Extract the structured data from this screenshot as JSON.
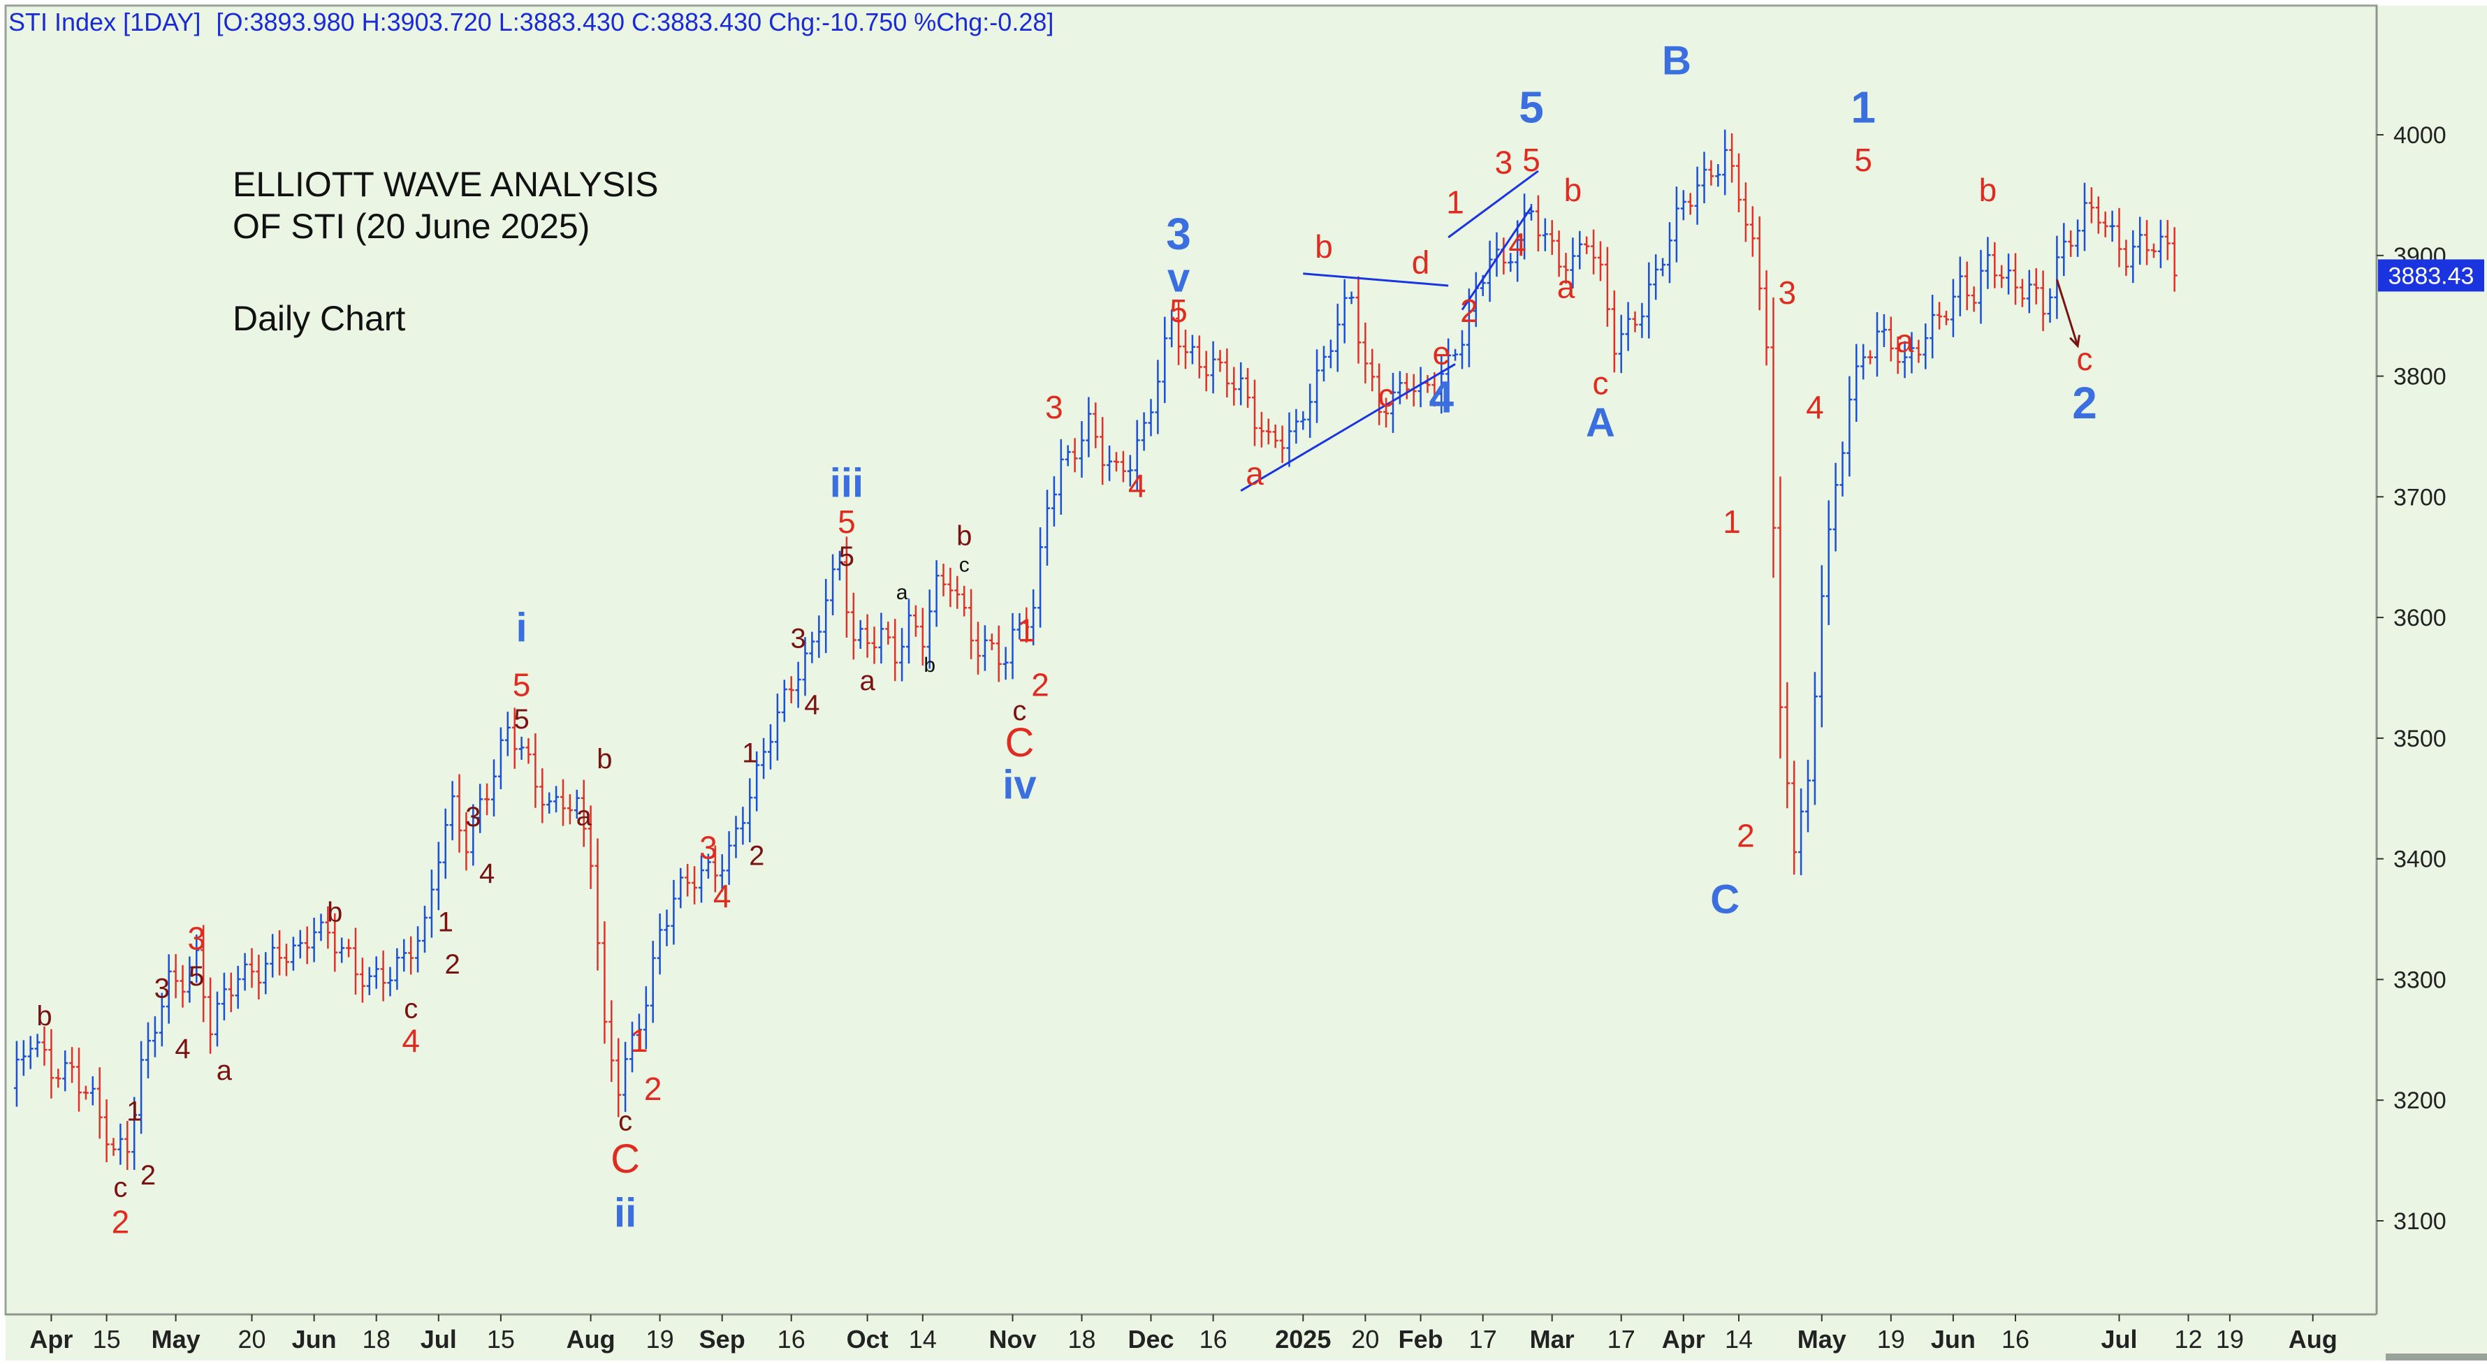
{
  "header": {
    "symbol": "STI Index [1DAY]",
    "ohlc": "[O:3893.980 H:3903.720 L:3883.430 C:3883.430 Chg:-10.750 %Chg:-0.28]"
  },
  "notes": {
    "title_line1": "ELLIOTT WAVE ANALYSIS",
    "title_line2": "OF STI (20 June 2025)",
    "subtitle": "Daily Chart"
  },
  "price_tag": {
    "value": "3883.43",
    "price": 3883.43
  },
  "colors": {
    "background": "#eaf5e4",
    "bar_blue": "#1a4fd6",
    "bar_red": "#e0302a",
    "wave_blue": "#3b6fe0",
    "wave_red": "#e02b20",
    "wave_dark": "#7a1212",
    "header_text": "#1a2ad6"
  },
  "chart_data": {
    "type": "ohlc",
    "title": "STI Index [1DAY]",
    "ylim": [
      3030,
      4100
    ],
    "yticks": [
      "3100",
      "3200",
      "3300",
      "3400",
      "3500",
      "3600",
      "3700",
      "3800",
      "3900",
      "4000"
    ],
    "xticks": [
      {
        "label": "Apr",
        "idx": 6,
        "bold": true
      },
      {
        "label": "15",
        "idx": 14,
        "bold": false
      },
      {
        "label": "May",
        "idx": 24,
        "bold": true
      },
      {
        "label": "20",
        "idx": 35,
        "bold": false
      },
      {
        "label": "Jun",
        "idx": 44,
        "bold": true
      },
      {
        "label": "18",
        "idx": 53,
        "bold": false
      },
      {
        "label": "Jul",
        "idx": 62,
        "bold": true
      },
      {
        "label": "15",
        "idx": 71,
        "bold": false
      },
      {
        "label": "Aug",
        "idx": 84,
        "bold": true
      },
      {
        "label": "19",
        "idx": 94,
        "bold": false
      },
      {
        "label": "Sep",
        "idx": 103,
        "bold": true
      },
      {
        "label": "16",
        "idx": 113,
        "bold": false
      },
      {
        "label": "Oct",
        "idx": 124,
        "bold": true
      },
      {
        "label": "14",
        "idx": 132,
        "bold": false
      },
      {
        "label": "Nov",
        "idx": 145,
        "bold": true
      },
      {
        "label": "18",
        "idx": 155,
        "bold": false
      },
      {
        "label": "Dec",
        "idx": 165,
        "bold": true
      },
      {
        "label": "16",
        "idx": 174,
        "bold": false
      },
      {
        "label": "2025",
        "idx": 187,
        "bold": true
      },
      {
        "label": "20",
        "idx": 196,
        "bold": false
      },
      {
        "label": "Feb",
        "idx": 204,
        "bold": true
      },
      {
        "label": "17",
        "idx": 213,
        "bold": false
      },
      {
        "label": "Mar",
        "idx": 223,
        "bold": true
      },
      {
        "label": "17",
        "idx": 233,
        "bold": false
      },
      {
        "label": "Apr",
        "idx": 242,
        "bold": true
      },
      {
        "label": "14",
        "idx": 250,
        "bold": false
      },
      {
        "label": "May",
        "idx": 262,
        "bold": true
      },
      {
        "label": "19",
        "idx": 272,
        "bold": false
      },
      {
        "label": "Jun",
        "idx": 281,
        "bold": true
      },
      {
        "label": "16",
        "idx": 290,
        "bold": false
      },
      {
        "label": "Jul",
        "idx": 305,
        "bold": true
      },
      {
        "label": "12",
        "idx": 315,
        "bold": false
      },
      {
        "label": "19",
        "idx": 321,
        "bold": false
      },
      {
        "label": "Aug",
        "idx": 333,
        "bold": true
      }
    ],
    "xlim": [
      0,
      340
    ],
    "anchors": [
      [
        0,
        3210
      ],
      [
        3,
        3245
      ],
      [
        6,
        3225
      ],
      [
        9,
        3230
      ],
      [
        12,
        3200
      ],
      [
        15,
        3150
      ],
      [
        17,
        3160
      ],
      [
        19,
        3230
      ],
      [
        21,
        3270
      ],
      [
        23,
        3300
      ],
      [
        25,
        3295
      ],
      [
        27,
        3310
      ],
      [
        29,
        3260
      ],
      [
        31,
        3290
      ],
      [
        33,
        3310
      ],
      [
        36,
        3305
      ],
      [
        39,
        3315
      ],
      [
        42,
        3325
      ],
      [
        44,
        3350
      ],
      [
        46,
        3340
      ],
      [
        48,
        3325
      ],
      [
        50,
        3300
      ],
      [
        52,
        3295
      ],
      [
        55,
        3310
      ],
      [
        58,
        3330
      ],
      [
        60,
        3340
      ],
      [
        62,
        3400
      ],
      [
        64,
        3440
      ],
      [
        66,
        3415
      ],
      [
        68,
        3450
      ],
      [
        70,
        3475
      ],
      [
        72,
        3505
      ],
      [
        74,
        3485
      ],
      [
        76,
        3460
      ],
      [
        78,
        3445
      ],
      [
        80,
        3455
      ],
      [
        82,
        3445
      ],
      [
        84,
        3400
      ],
      [
        86,
        3250
      ],
      [
        88,
        3210
      ],
      [
        90,
        3250
      ],
      [
        92,
        3290
      ],
      [
        94,
        3340
      ],
      [
        96,
        3365
      ],
      [
        98,
        3375
      ],
      [
        100,
        3385
      ],
      [
        102,
        3395
      ],
      [
        104,
        3410
      ],
      [
        106,
        3440
      ],
      [
        108,
        3465
      ],
      [
        110,
        3500
      ],
      [
        112,
        3530
      ],
      [
        114,
        3560
      ],
      [
        116,
        3580
      ],
      [
        118,
        3620
      ],
      [
        120,
        3640
      ],
      [
        122,
        3575
      ],
      [
        124,
        3580
      ],
      [
        126,
        3590
      ],
      [
        128,
        3575
      ],
      [
        130,
        3595
      ],
      [
        132,
        3580
      ],
      [
        134,
        3620
      ],
      [
        136,
        3630
      ],
      [
        138,
        3605
      ],
      [
        140,
        3580
      ],
      [
        142,
        3575
      ],
      [
        144,
        3560
      ],
      [
        146,
        3590
      ],
      [
        148,
        3605
      ],
      [
        150,
        3700
      ],
      [
        152,
        3730
      ],
      [
        154,
        3740
      ],
      [
        156,
        3755
      ],
      [
        158,
        3730
      ],
      [
        160,
        3720
      ],
      [
        162,
        3735
      ],
      [
        164,
        3760
      ],
      [
        166,
        3800
      ],
      [
        168,
        3840
      ],
      [
        170,
        3815
      ],
      [
        172,
        3810
      ],
      [
        174,
        3815
      ],
      [
        176,
        3805
      ],
      [
        178,
        3790
      ],
      [
        180,
        3760
      ],
      [
        182,
        3740
      ],
      [
        184,
        3750
      ],
      [
        186,
        3760
      ],
      [
        188,
        3790
      ],
      [
        190,
        3810
      ],
      [
        192,
        3840
      ],
      [
        194,
        3860
      ],
      [
        196,
        3810
      ],
      [
        198,
        3780
      ],
      [
        200,
        3785
      ],
      [
        202,
        3795
      ],
      [
        204,
        3780
      ],
      [
        206,
        3790
      ],
      [
        208,
        3810
      ],
      [
        210,
        3840
      ],
      [
        212,
        3870
      ],
      [
        214,
        3900
      ],
      [
        216,
        3885
      ],
      [
        218,
        3910
      ],
      [
        220,
        3940
      ],
      [
        222,
        3920
      ],
      [
        224,
        3900
      ],
      [
        226,
        3890
      ],
      [
        228,
        3910
      ],
      [
        230,
        3880
      ],
      [
        232,
        3830
      ],
      [
        234,
        3845
      ],
      [
        236,
        3860
      ],
      [
        238,
        3880
      ],
      [
        240,
        3910
      ],
      [
        242,
        3940
      ],
      [
        244,
        3960
      ],
      [
        246,
        3975
      ],
      [
        248,
        3985
      ],
      [
        250,
        3950
      ],
      [
        252,
        3900
      ],
      [
        254,
        3830
      ],
      [
        256,
        3520
      ],
      [
        258,
        3420
      ],
      [
        260,
        3460
      ],
      [
        262,
        3620
      ],
      [
        264,
        3700
      ],
      [
        266,
        3780
      ],
      [
        268,
        3820
      ],
      [
        270,
        3840
      ],
      [
        272,
        3830
      ],
      [
        274,
        3805
      ],
      [
        276,
        3820
      ],
      [
        278,
        3840
      ],
      [
        280,
        3860
      ],
      [
        282,
        3880
      ],
      [
        284,
        3870
      ],
      [
        286,
        3890
      ],
      [
        288,
        3880
      ],
      [
        290,
        3870
      ],
      [
        292,
        3880
      ],
      [
        294,
        3860
      ],
      [
        296,
        3895
      ],
      [
        298,
        3910
      ],
      [
        300,
        3930
      ],
      [
        302,
        3935
      ],
      [
        304,
        3920
      ],
      [
        306,
        3905
      ],
      [
        308,
        3910
      ],
      [
        310,
        3905
      ],
      [
        312,
        3900
      ],
      [
        313,
        3883.43
      ]
    ]
  },
  "wave_labels": [
    {
      "text": "b",
      "idx": 5,
      "price": 3262,
      "color": "dark",
      "size": 40
    },
    {
      "text": "c",
      "idx": 16,
      "price": 3120,
      "color": "dark",
      "size": 40
    },
    {
      "text": "2",
      "idx": 16,
      "price": 3090,
      "color": "red",
      "size": 46
    },
    {
      "text": "1",
      "idx": 18,
      "price": 3183,
      "color": "dark",
      "size": 40
    },
    {
      "text": "2",
      "idx": 20,
      "price": 3130,
      "color": "dark",
      "size": 40
    },
    {
      "text": "3",
      "idx": 22,
      "price": 3285,
      "color": "dark",
      "size": 40
    },
    {
      "text": "3",
      "idx": 27,
      "price": 3325,
      "color": "red",
      "size": 46
    },
    {
      "text": "5",
      "idx": 27,
      "price": 3295,
      "color": "dark",
      "size": 40
    },
    {
      "text": "4",
      "idx": 25,
      "price": 3235,
      "color": "dark",
      "size": 40
    },
    {
      "text": "a",
      "idx": 31,
      "price": 3217,
      "color": "dark",
      "size": 40
    },
    {
      "text": "b",
      "idx": 47,
      "price": 3348,
      "color": "dark",
      "size": 40
    },
    {
      "text": "c",
      "idx": 58,
      "price": 3268,
      "color": "dark",
      "size": 40
    },
    {
      "text": "4",
      "idx": 58,
      "price": 3240,
      "color": "red",
      "size": 46
    },
    {
      "text": "1",
      "idx": 63,
      "price": 3340,
      "color": "dark",
      "size": 40
    },
    {
      "text": "2",
      "idx": 64,
      "price": 3305,
      "color": "dark",
      "size": 40
    },
    {
      "text": "3",
      "idx": 67,
      "price": 3427,
      "color": "dark",
      "size": 40
    },
    {
      "text": "4",
      "idx": 69,
      "price": 3380,
      "color": "dark",
      "size": 40
    },
    {
      "text": "i",
      "idx": 74,
      "price": 3580,
      "color": "blue",
      "size": 58
    },
    {
      "text": "5",
      "idx": 74,
      "price": 3535,
      "color": "red",
      "size": 46
    },
    {
      "text": "5",
      "idx": 74,
      "price": 3508,
      "color": "dark",
      "size": 40
    },
    {
      "text": "a",
      "idx": 83,
      "price": 3428,
      "color": "dark",
      "size": 40
    },
    {
      "text": "b",
      "idx": 86,
      "price": 3475,
      "color": "dark",
      "size": 40
    },
    {
      "text": "c",
      "idx": 89,
      "price": 3175,
      "color": "dark",
      "size": 40
    },
    {
      "text": "C",
      "idx": 89,
      "price": 3140,
      "color": "red",
      "size": 58
    },
    {
      "text": "ii",
      "idx": 89,
      "price": 3095,
      "color": "blue",
      "size": 58
    },
    {
      "text": "1",
      "idx": 91,
      "price": 3240,
      "color": "red",
      "size": 46
    },
    {
      "text": "2",
      "idx": 93,
      "price": 3200,
      "color": "red",
      "size": 46
    },
    {
      "text": "3",
      "idx": 101,
      "price": 3400,
      "color": "red",
      "size": 46
    },
    {
      "text": "4",
      "idx": 103,
      "price": 3360,
      "color": "red",
      "size": 46
    },
    {
      "text": "1",
      "idx": 107,
      "price": 3480,
      "color": "dark",
      "size": 40
    },
    {
      "text": "2",
      "idx": 108,
      "price": 3395,
      "color": "dark",
      "size": 40
    },
    {
      "text": "3",
      "idx": 114,
      "price": 3575,
      "color": "dark",
      "size": 40
    },
    {
      "text": "4",
      "idx": 116,
      "price": 3520,
      "color": "dark",
      "size": 40
    },
    {
      "text": "iii",
      "idx": 121,
      "price": 3700,
      "color": "blue",
      "size": 58
    },
    {
      "text": "5",
      "idx": 121,
      "price": 3670,
      "color": "red",
      "size": 46
    },
    {
      "text": "5",
      "idx": 121,
      "price": 3643,
      "color": "dark",
      "size": 40
    },
    {
      "text": "a",
      "idx": 124,
      "price": 3540,
      "color": "dark",
      "size": 40
    },
    {
      "text": "a",
      "idx": 129,
      "price": 3615,
      "color": "black",
      "size": 30
    },
    {
      "text": "b",
      "idx": 133,
      "price": 3555,
      "color": "black",
      "size": 30
    },
    {
      "text": "b",
      "idx": 138,
      "price": 3660,
      "color": "dark",
      "size": 40
    },
    {
      "text": "c",
      "idx": 138,
      "price": 3638,
      "color": "black",
      "size": 30
    },
    {
      "text": "1",
      "idx": 147,
      "price": 3580,
      "color": "red",
      "size": 46
    },
    {
      "text": "2",
      "idx": 149,
      "price": 3535,
      "color": "red",
      "size": 46
    },
    {
      "text": "c",
      "idx": 146,
      "price": 3515,
      "color": "dark",
      "size": 40
    },
    {
      "text": "C",
      "idx": 146,
      "price": 3485,
      "color": "red",
      "size": 58
    },
    {
      "text": "iv",
      "idx": 146,
      "price": 3450,
      "color": "blue",
      "size": 58
    },
    {
      "text": "3",
      "idx": 151,
      "price": 3765,
      "color": "red",
      "size": 46
    },
    {
      "text": "4",
      "idx": 163,
      "price": 3700,
      "color": "red",
      "size": 46
    },
    {
      "text": "3",
      "idx": 169,
      "price": 3905,
      "color": "blue",
      "size": 64
    },
    {
      "text": "v",
      "idx": 169,
      "price": 3870,
      "color": "blue",
      "size": 58
    },
    {
      "text": "5",
      "idx": 169,
      "price": 3845,
      "color": "red",
      "size": 46
    },
    {
      "text": "a",
      "idx": 180,
      "price": 3710,
      "color": "red",
      "size": 46
    },
    {
      "text": "b",
      "idx": 190,
      "price": 3898,
      "color": "red",
      "size": 46
    },
    {
      "text": "c",
      "idx": 199,
      "price": 3775,
      "color": "red",
      "size": 46
    },
    {
      "text": "d",
      "idx": 204,
      "price": 3885,
      "color": "red",
      "size": 46
    },
    {
      "text": "e",
      "idx": 207,
      "price": 3810,
      "color": "red",
      "size": 46
    },
    {
      "text": "4",
      "idx": 207,
      "price": 3770,
      "color": "blue",
      "size": 64
    },
    {
      "text": "1",
      "idx": 209,
      "price": 3935,
      "color": "red",
      "size": 46
    },
    {
      "text": "2",
      "idx": 211,
      "price": 3845,
      "color": "red",
      "size": 46
    },
    {
      "text": "3",
      "idx": 216,
      "price": 3968,
      "color": "red",
      "size": 46
    },
    {
      "text": "5",
      "idx": 220,
      "price": 3970,
      "color": "red",
      "size": 46
    },
    {
      "text": "5",
      "idx": 220,
      "price": 4010,
      "color": "blue",
      "size": 64
    },
    {
      "text": "4",
      "idx": 218,
      "price": 3900,
      "color": "red",
      "size": 46
    },
    {
      "text": "b",
      "idx": 226,
      "price": 3945,
      "color": "red",
      "size": 46
    },
    {
      "text": "a",
      "idx": 225,
      "price": 3865,
      "color": "red",
      "size": 46
    },
    {
      "text": "c",
      "idx": 230,
      "price": 3785,
      "color": "red",
      "size": 46
    },
    {
      "text": "A",
      "idx": 230,
      "price": 3750,
      "color": "blue",
      "size": 58
    },
    {
      "text": "B",
      "idx": 241,
      "price": 4050,
      "color": "blue",
      "size": 58
    },
    {
      "text": "1",
      "idx": 249,
      "price": 3670,
      "color": "red",
      "size": 46
    },
    {
      "text": "2",
      "idx": 251,
      "price": 3410,
      "color": "red",
      "size": 46
    },
    {
      "text": "C",
      "idx": 248,
      "price": 3355,
      "color": "blue",
      "size": 58
    },
    {
      "text": "3",
      "idx": 257,
      "price": 3860,
      "color": "red",
      "size": 46
    },
    {
      "text": "4",
      "idx": 261,
      "price": 3765,
      "color": "red",
      "size": 46
    },
    {
      "text": "1",
      "idx": 268,
      "price": 4010,
      "color": "blue",
      "size": 64
    },
    {
      "text": "5",
      "idx": 268,
      "price": 3970,
      "color": "red",
      "size": 46
    },
    {
      "text": "a",
      "idx": 274,
      "price": 3820,
      "color": "red",
      "size": 46
    },
    {
      "text": "b",
      "idx": 286,
      "price": 3945,
      "color": "red",
      "size": 46
    },
    {
      "text": "c",
      "idx": 300,
      "price": 3805,
      "color": "red",
      "size": 46
    },
    {
      "text": "2",
      "idx": 300,
      "price": 3765,
      "color": "blue",
      "size": 64
    }
  ],
  "trendlines": [
    {
      "name": "triangle-upper-line",
      "from": [
        187,
        3885
      ],
      "to": [
        208,
        3875
      ]
    },
    {
      "name": "triangle-lower-line",
      "from": [
        178,
        3705
      ],
      "to": [
        209,
        3810
      ]
    },
    {
      "name": "diagonal-upper-line",
      "from": [
        208,
        3915
      ],
      "to": [
        221,
        3970
      ]
    },
    {
      "name": "diagonal-lower-line",
      "from": [
        210,
        3855
      ],
      "to": [
        220,
        3940
      ]
    }
  ],
  "arrow": {
    "from": [
      296,
      3880
    ],
    "to": [
      299,
      3825
    ]
  }
}
